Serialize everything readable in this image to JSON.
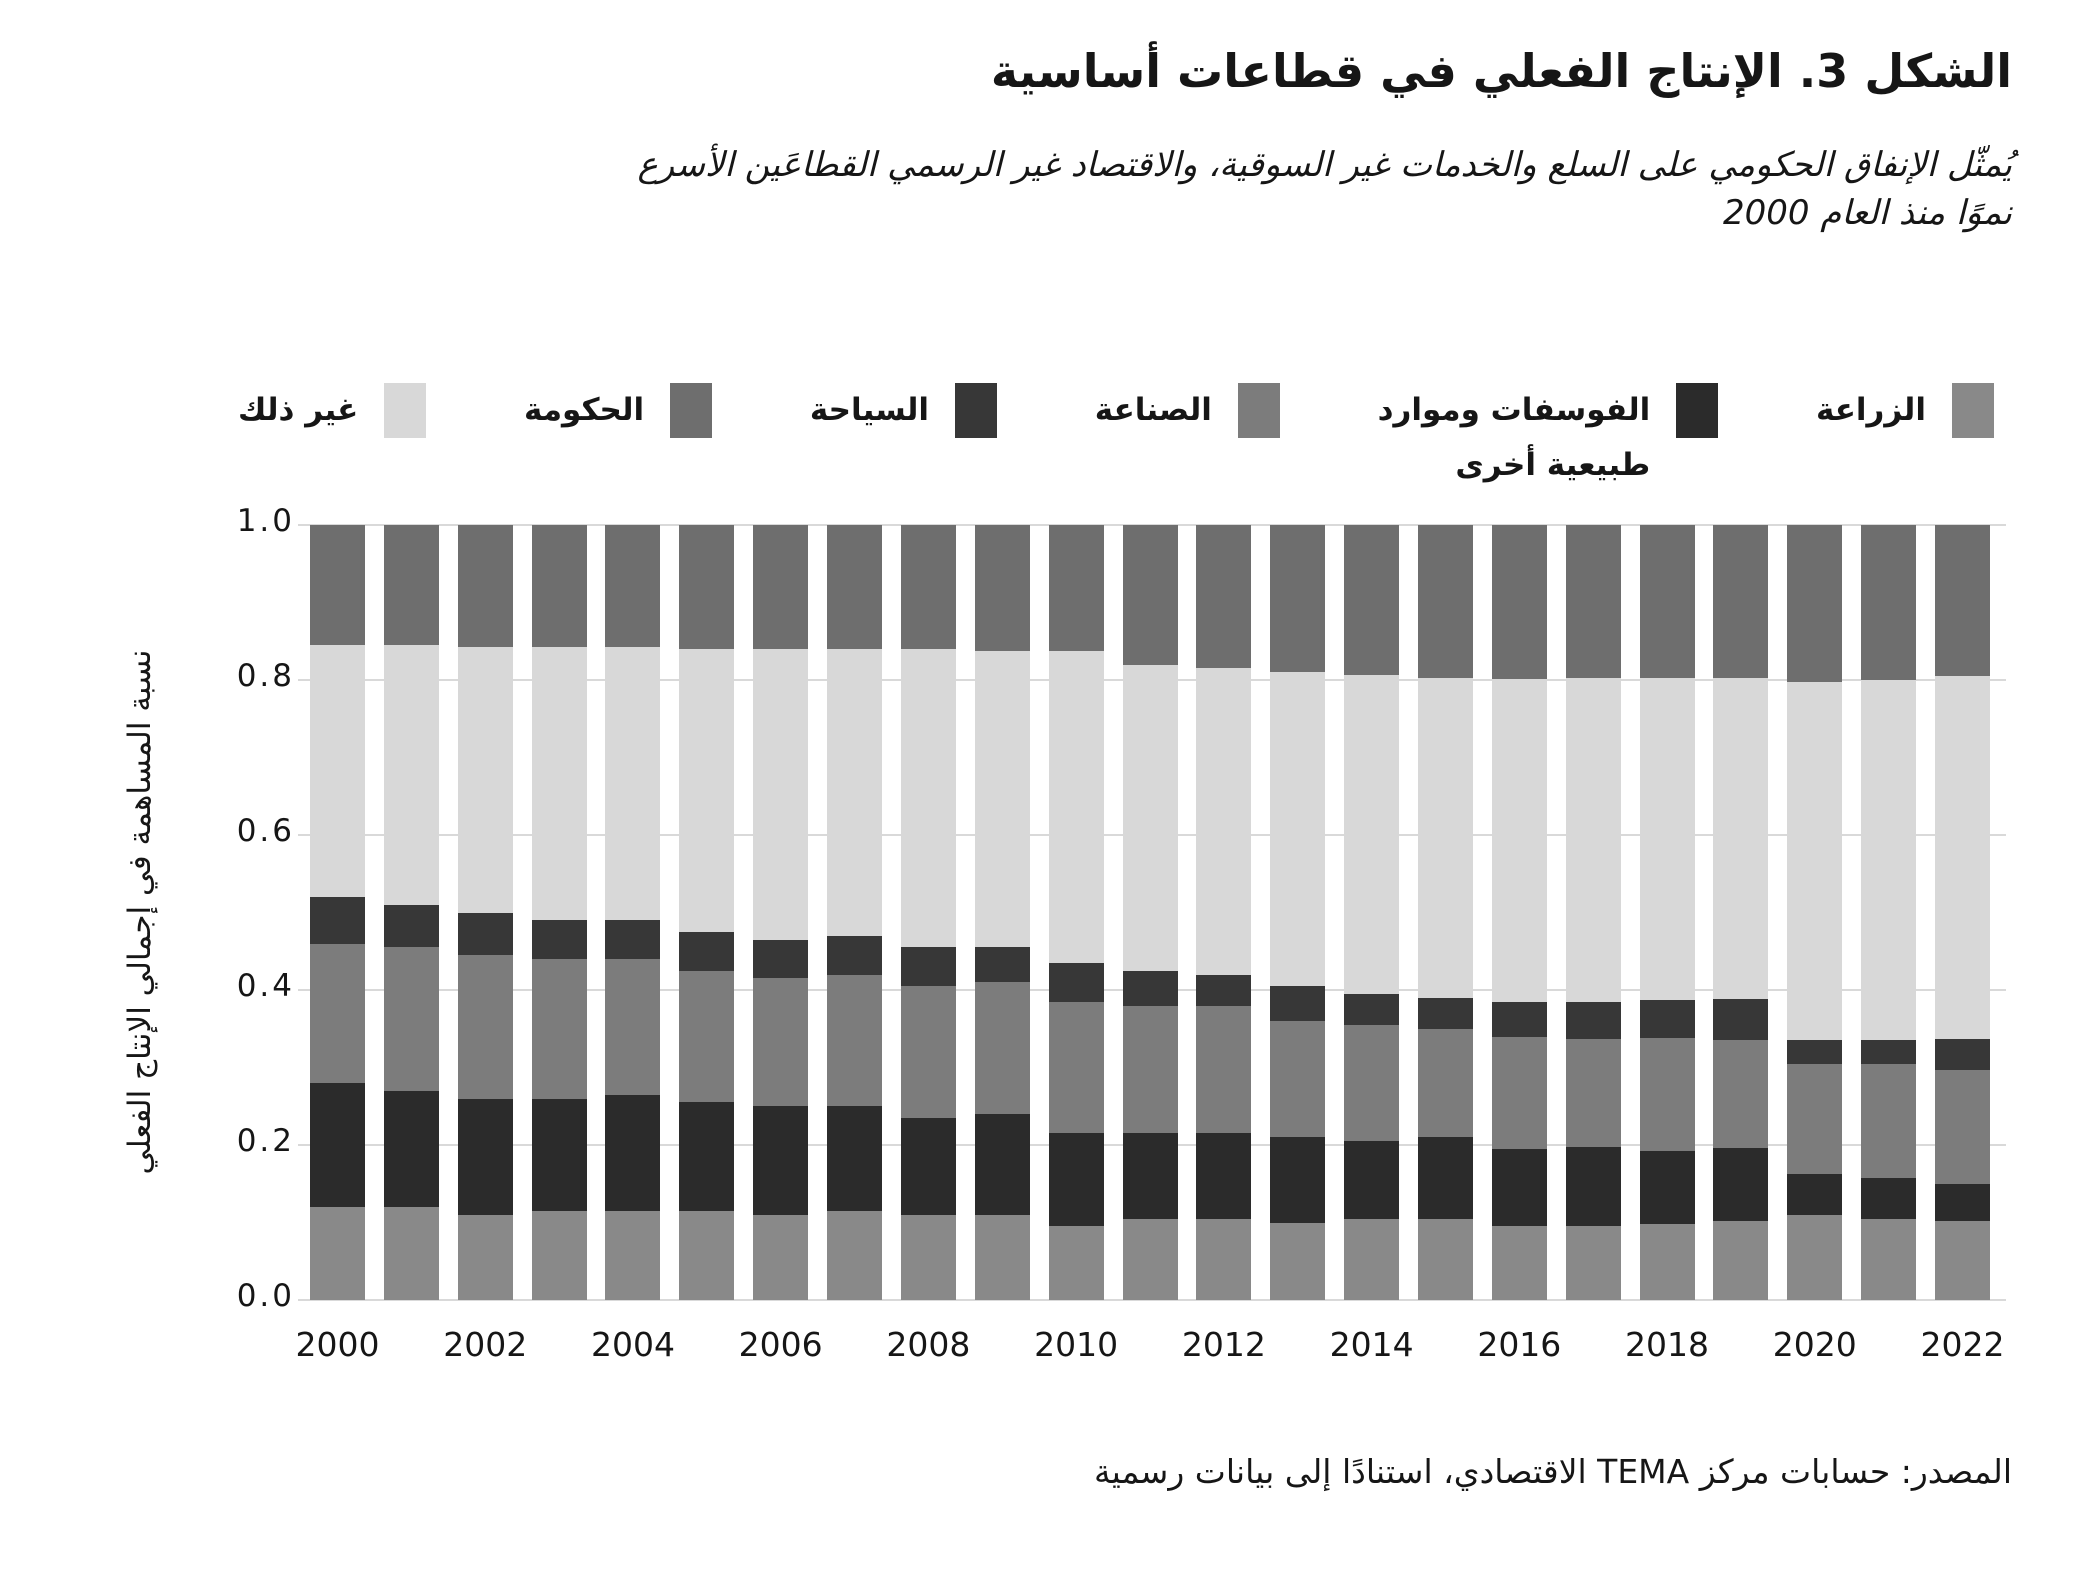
{
  "title": "الشكل 3. الإنتاج الفعلي في قطاعات أساسية",
  "subtitle": "يُمثّل الإنفاق الحكومي على السلع والخدمات غير السوقية، والاقتصاد غير الرسمي القطاعَين الأسرع\nنموًا منذ العام 2000",
  "y_axis_title": "نسبة المساهمة في إجمالي الإنتاج الفعلي",
  "source": "المصدر: حسابات مركز TEMA الاقتصادي، استنادًا إلى بيانات رسمية",
  "colors": {
    "agriculture": "#898989",
    "phosphates": "#2b2b2b",
    "industry": "#7c7c7c",
    "tourism": "#373737",
    "other": "#d8d8d8",
    "government": "#6e6e6e",
    "gridline": "#d9d9d9",
    "text": "#161616",
    "background": "#ffffff"
  },
  "legend": {
    "items_rtl_order": [
      {
        "label": "الزراعة",
        "color": "#898989"
      },
      {
        "label": "الفوسفات وموارد\nطبيعية أخرى",
        "color": "#2b2b2b"
      },
      {
        "label": "الصناعة",
        "color": "#7c7c7c"
      },
      {
        "label": "السياحة",
        "color": "#373737"
      },
      {
        "label": "الحكومة",
        "color": "#6e6e6e"
      },
      {
        "label": "غير ذلك",
        "color": "#d8d8d8"
      }
    ]
  },
  "chart_data": {
    "type": "bar",
    "stacked": true,
    "title": "الشكل 3. الإنتاج الفعلي في قطاعات أساسية",
    "xlabel": "",
    "ylabel": "نسبة المساهمة في إجمالي الإنتاج الفعلي",
    "ylim": [
      0,
      1
    ],
    "grid": true,
    "legend_position": "top",
    "x": [
      2000,
      2001,
      2002,
      2003,
      2004,
      2005,
      2006,
      2007,
      2008,
      2009,
      2010,
      2011,
      2012,
      2013,
      2014,
      2015,
      2016,
      2017,
      2018,
      2019,
      2020,
      2021,
      2022
    ],
    "xtick_every": 2,
    "yticks": [
      0,
      0.2,
      0.4,
      0.6,
      0.8,
      1.0
    ],
    "ytick_labels": [
      "0.0",
      "0.2",
      "0.4",
      "0.6",
      "0.8",
      "1.0"
    ],
    "series": [
      {
        "name": "الزراعة",
        "color": "#898989",
        "values": [
          0.12,
          0.12,
          0.11,
          0.115,
          0.115,
          0.115,
          0.11,
          0.115,
          0.11,
          0.11,
          0.095,
          0.105,
          0.105,
          0.1,
          0.105,
          0.105,
          0.095,
          0.095,
          0.098,
          0.102,
          0.11,
          0.105,
          0.102
        ]
      },
      {
        "name": "الفوسفات وموارد طبيعية أخرى",
        "color": "#2b2b2b",
        "values": [
          0.16,
          0.15,
          0.15,
          0.145,
          0.15,
          0.14,
          0.14,
          0.135,
          0.125,
          0.13,
          0.12,
          0.11,
          0.11,
          0.11,
          0.1,
          0.105,
          0.1,
          0.103,
          0.094,
          0.094,
          0.052,
          0.052,
          0.048
        ]
      },
      {
        "name": "الصناعة",
        "color": "#7c7c7c",
        "values": [
          0.18,
          0.185,
          0.185,
          0.18,
          0.175,
          0.17,
          0.165,
          0.17,
          0.17,
          0.17,
          0.17,
          0.165,
          0.165,
          0.15,
          0.15,
          0.14,
          0.145,
          0.139,
          0.146,
          0.139,
          0.142,
          0.148,
          0.147
        ]
      },
      {
        "name": "السياحة",
        "color": "#373737",
        "values": [
          0.06,
          0.055,
          0.055,
          0.05,
          0.05,
          0.05,
          0.05,
          0.05,
          0.05,
          0.045,
          0.05,
          0.045,
          0.04,
          0.045,
          0.04,
          0.04,
          0.045,
          0.048,
          0.049,
          0.053,
          0.031,
          0.03,
          0.04
        ]
      },
      {
        "name": "غير ذلك",
        "color": "#d8d8d8",
        "values": [
          0.325,
          0.335,
          0.343,
          0.353,
          0.353,
          0.365,
          0.375,
          0.37,
          0.385,
          0.383,
          0.402,
          0.395,
          0.395,
          0.405,
          0.412,
          0.413,
          0.416,
          0.417,
          0.416,
          0.415,
          0.463,
          0.465,
          0.468
        ]
      },
      {
        "name": "الحكومة",
        "color": "#6e6e6e",
        "values": [
          0.155,
          0.155,
          0.157,
          0.157,
          0.157,
          0.16,
          0.16,
          0.16,
          0.16,
          0.162,
          0.163,
          0.18,
          0.185,
          0.19,
          0.193,
          0.197,
          0.199,
          0.198,
          0.197,
          0.197,
          0.202,
          0.2,
          0.195
        ]
      }
    ]
  }
}
